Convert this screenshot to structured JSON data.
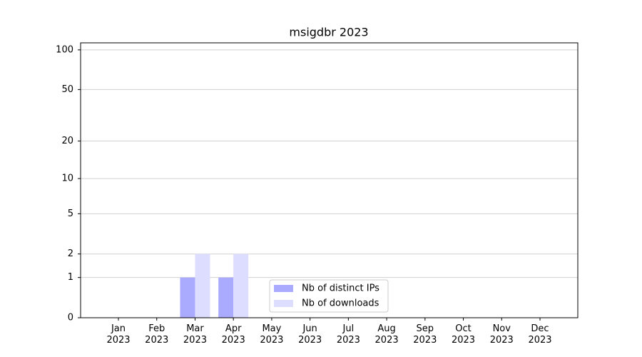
{
  "chart_data": {
    "type": "bar",
    "title": "msigdbr 2023",
    "categories": [
      "Jan 2023",
      "Feb 2023",
      "Mar 2023",
      "Apr 2023",
      "May 2023",
      "Jun 2023",
      "Jul 2023",
      "Aug 2023",
      "Sep 2023",
      "Oct 2023",
      "Nov 2023",
      "Dec 2023"
    ],
    "series": [
      {
        "name": "Nb of distinct IPs",
        "color": "#aaaaff",
        "values": [
          0,
          0,
          1,
          1,
          0,
          0,
          0,
          0,
          0,
          0,
          0,
          0
        ]
      },
      {
        "name": "Nb of downloads",
        "color": "#ddddff",
        "values": [
          0,
          0,
          2,
          2,
          0,
          0,
          0,
          0,
          0,
          0,
          0,
          0
        ]
      }
    ],
    "yscale": "log1p",
    "ylim": [
      0,
      113
    ],
    "yticks": [
      0,
      1,
      2,
      5,
      10,
      20,
      50,
      100
    ],
    "grid": true,
    "legend": "lower center"
  }
}
